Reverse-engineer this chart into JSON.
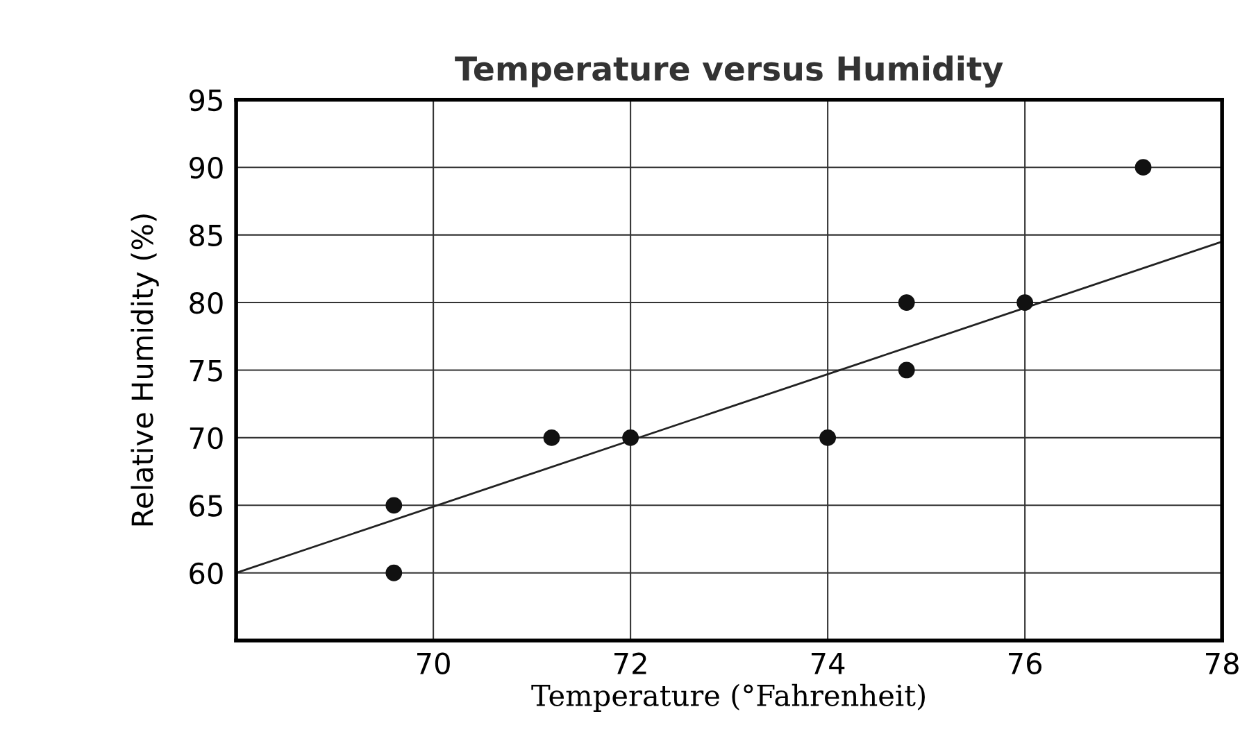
{
  "chart_data": {
    "type": "scatter",
    "title": "Temperature versus Humidity",
    "xlabel": "Temperature (°Fahrenheit)",
    "ylabel": "Relative Humidity (%)",
    "series": [
      {
        "color": "#111111",
        "marker": "circle",
        "x": [
          69.6,
          69.6,
          71.2,
          72,
          74,
          74.8,
          74.8,
          76,
          77.2
        ],
        "values": [
          60,
          65,
          70,
          70,
          70,
          75,
          80,
          80,
          90
        ]
      },
      {
        "type": "line",
        "color": "#222222",
        "x": [
          68,
          78
        ],
        "values": [
          60,
          84.5
        ]
      }
    ],
    "xlim": [
      68,
      78
    ],
    "xticks": [
      70,
      72,
      74,
      76,
      78
    ],
    "ylim": [
      55,
      95
    ],
    "yticks": [
      60,
      65,
      70,
      75,
      80,
      85,
      90,
      95
    ],
    "grid": true
  }
}
